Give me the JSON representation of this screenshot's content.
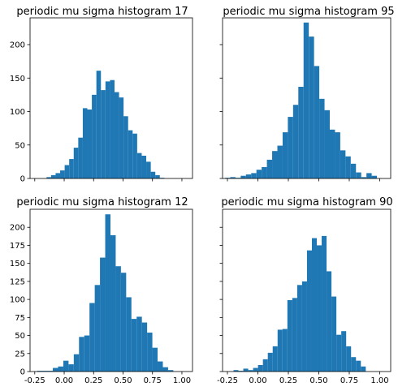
{
  "chart_data": [
    {
      "type": "bar",
      "title": "periodic mu sigma histogram 17",
      "bar_color": "#1f77b4",
      "bin_start": -0.15,
      "bin_width": 0.0385,
      "values": [
        2,
        5,
        8,
        12,
        20,
        29,
        46,
        61,
        105,
        103,
        125,
        161,
        132,
        145,
        147,
        129,
        121,
        93,
        72,
        67,
        38,
        34,
        25,
        10,
        5,
        1
      ],
      "xlim": [
        -0.29,
        1.09
      ],
      "ylim": [
        0,
        240
      ],
      "x_ticks": [
        "-0.25",
        "0.00",
        "0.25",
        "0.50",
        "0.75",
        "1.00"
      ],
      "show_x_tick_labels": false,
      "y_ticks": [
        "0",
        "50",
        "100",
        "150",
        "200"
      ],
      "show_y_tick_labels": true
    },
    {
      "type": "bar",
      "title": "periodic mu sigma histogram 95",
      "bar_color": "#1f77b4",
      "bin_start": -0.27,
      "bin_width": 0.043,
      "values": [
        1,
        2,
        1,
        4,
        6,
        8,
        13,
        17,
        28,
        41,
        49,
        69,
        92,
        110,
        137,
        233,
        212,
        168,
        119,
        102,
        73,
        69,
        42,
        33,
        22,
        9,
        2,
        8,
        4
      ],
      "xlim": [
        -0.29,
        1.09
      ],
      "ylim": [
        0,
        240
      ],
      "x_ticks": [
        "-0.25",
        "0.00",
        "0.25",
        "0.50",
        "0.75",
        "1.00"
      ],
      "show_x_tick_labels": false,
      "y_ticks": [
        "0",
        "50",
        "100",
        "150",
        "200"
      ],
      "show_y_tick_labels": false
    },
    {
      "type": "bar",
      "title": "periodic mu sigma histogram 12",
      "bar_color": "#1f77b4",
      "bin_start": -0.23,
      "bin_width": 0.0445,
      "values": [
        1,
        1,
        1,
        5,
        7,
        15,
        10,
        24,
        48,
        50,
        95,
        120,
        158,
        218,
        189,
        146,
        137,
        103,
        73,
        76,
        68,
        54,
        33,
        14,
        6,
        2
      ],
      "xlim": [
        -0.29,
        1.09
      ],
      "ylim": [
        0,
        225
      ],
      "x_ticks": [
        "-0.25",
        "0.00",
        "0.25",
        "0.50",
        "0.75",
        "1.00"
      ],
      "show_x_tick_labels": true,
      "y_ticks": [
        "0",
        "25",
        "50",
        "75",
        "100",
        "125",
        "150",
        "175",
        "200"
      ],
      "show_y_tick_labels": true
    },
    {
      "type": "bar",
      "title": "periodic mu sigma histogram 90",
      "bar_color": "#1f77b4",
      "bin_start": -0.2,
      "bin_width": 0.0402,
      "values": [
        2,
        1,
        4,
        2,
        5,
        9,
        17,
        26,
        35,
        58,
        59,
        99,
        102,
        120,
        125,
        168,
        185,
        175,
        188,
        139,
        104,
        51,
        56,
        35,
        20,
        15,
        7
      ],
      "xlim": [
        -0.29,
        1.09
      ],
      "ylim": [
        0,
        225
      ],
      "x_ticks": [
        "-0.25",
        "0.00",
        "0.25",
        "0.50",
        "0.75",
        "1.00"
      ],
      "show_x_tick_labels": true,
      "y_ticks": [
        "0",
        "25",
        "50",
        "75",
        "100",
        "125",
        "150",
        "175",
        "200"
      ],
      "show_y_tick_labels": false
    }
  ]
}
